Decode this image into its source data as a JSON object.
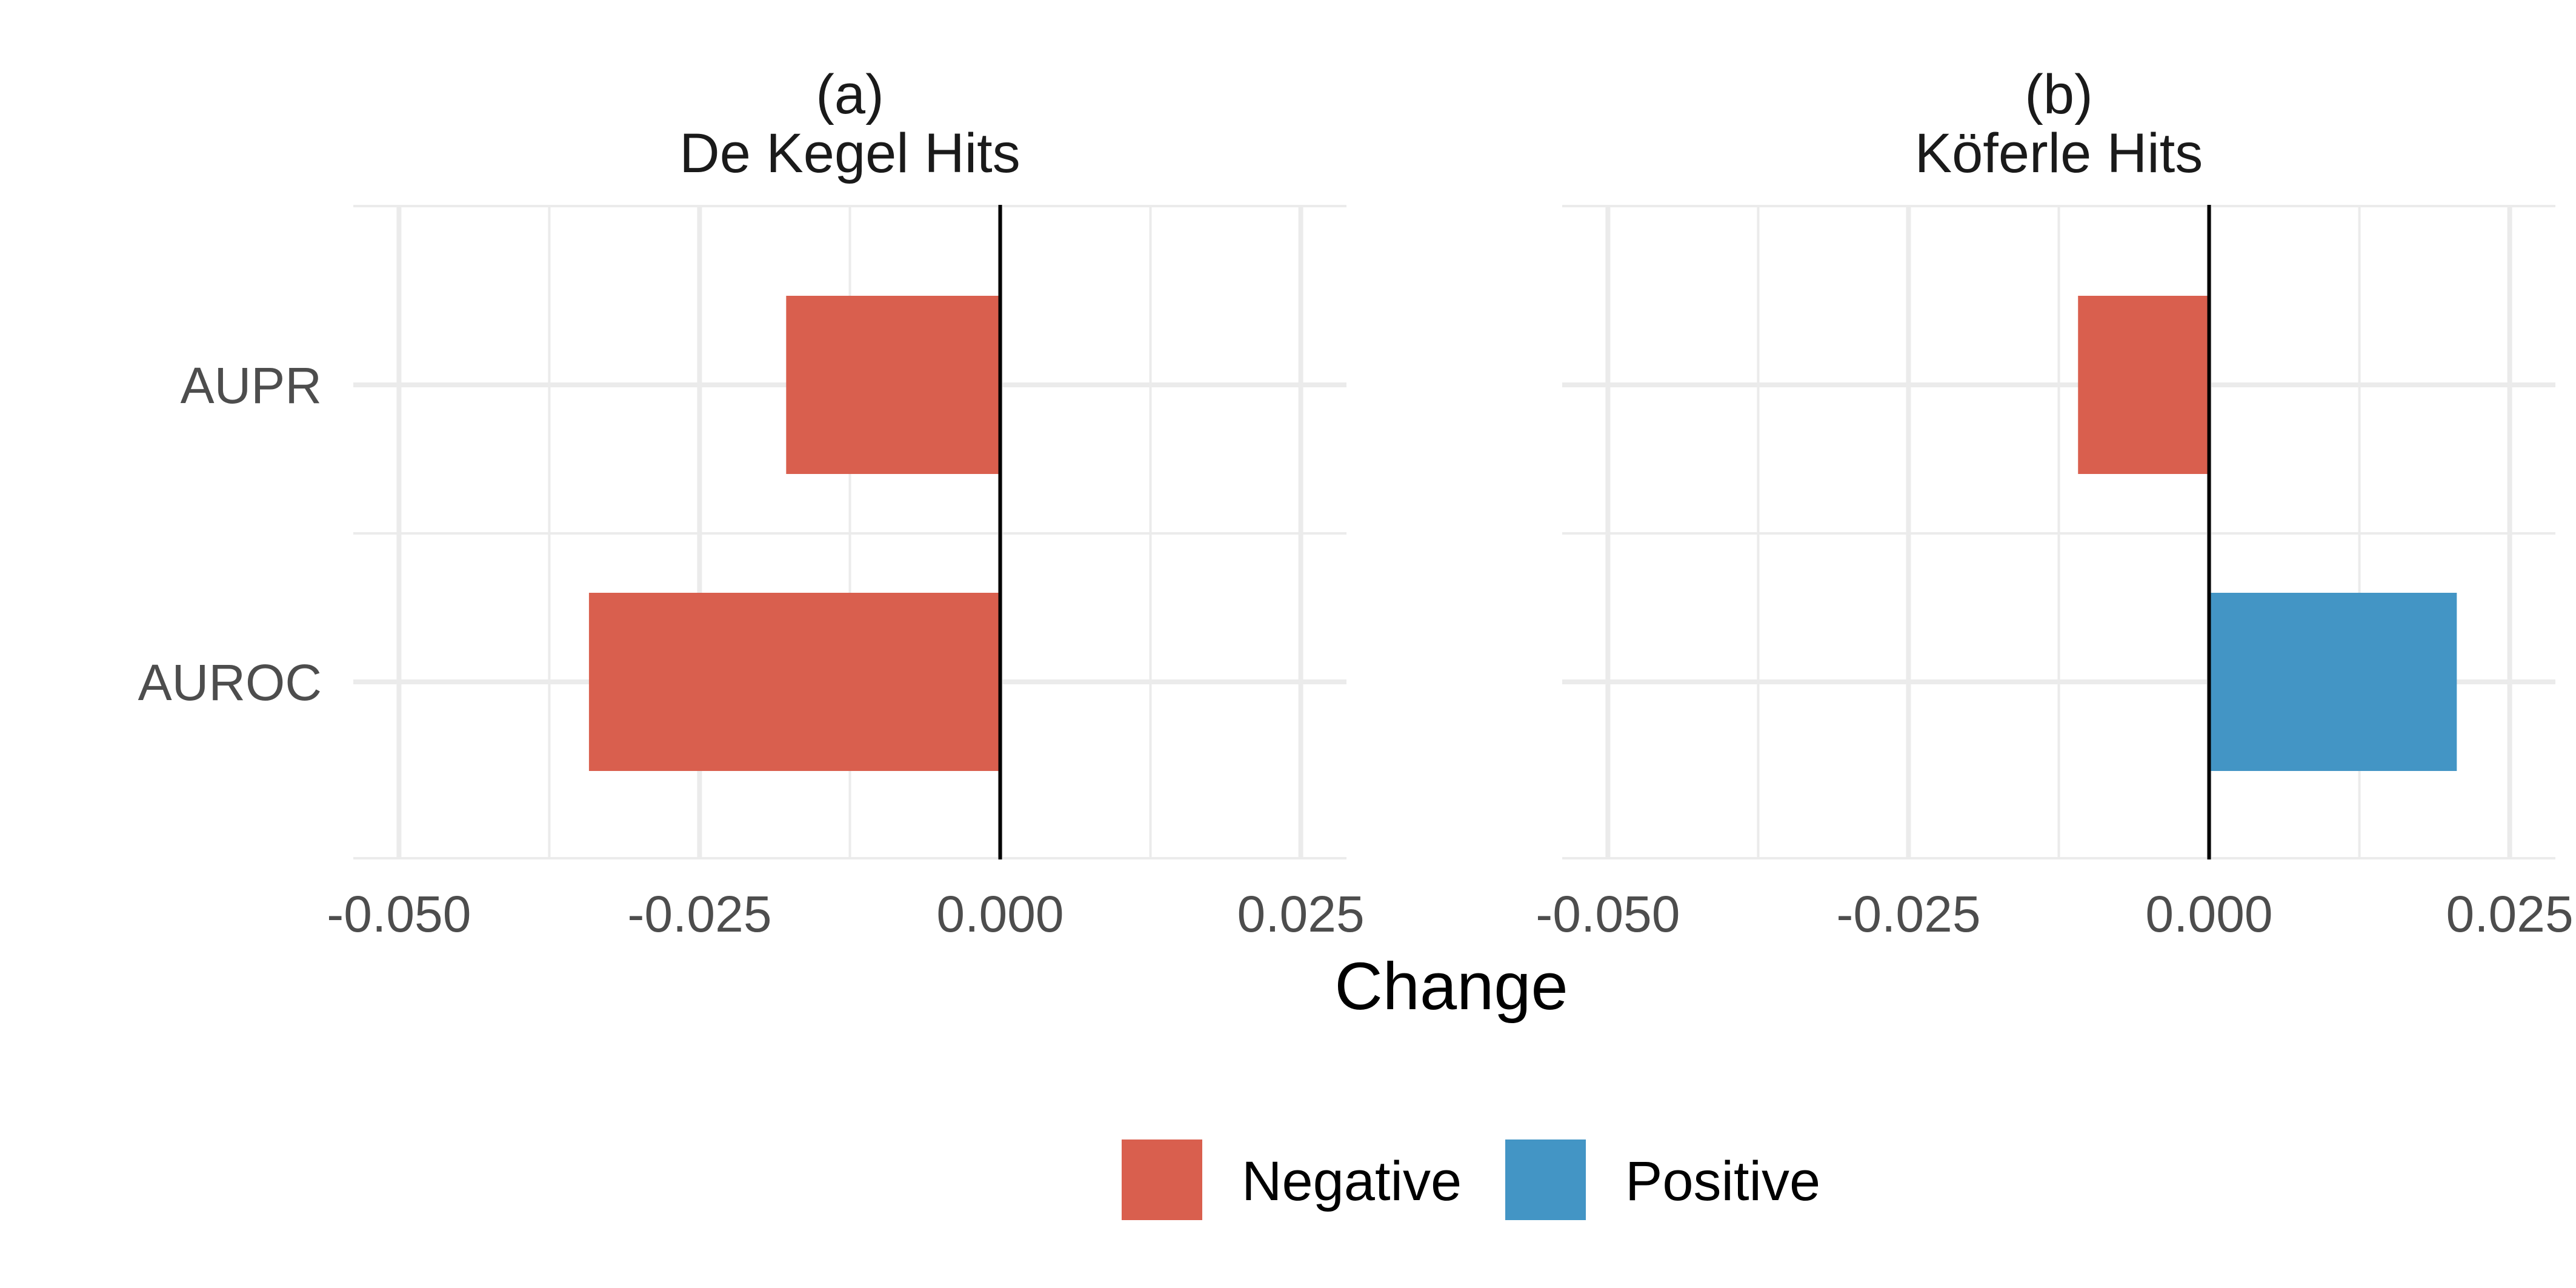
{
  "chart_data": [
    {
      "type": "bar",
      "orientation": "horizontal",
      "title": "(a)\nDe Kegel Hits",
      "title_lines": [
        "(a)",
        "De Kegel Hits"
      ],
      "categories": [
        "AUPR",
        "AUROC"
      ],
      "values": [
        -0.0178,
        -0.0342
      ],
      "sign_labels": [
        "Negative",
        "Negative"
      ],
      "xlim": [
        -0.0538,
        0.0288
      ],
      "xticks": [
        -0.05,
        -0.025,
        0.0,
        0.025
      ],
      "xtick_labels": [
        "-0.050",
        "-0.025",
        "0.000",
        "0.025"
      ],
      "xlabel": "Change",
      "ylabel": "",
      "grid": true,
      "vline_at": 0
    },
    {
      "type": "bar",
      "orientation": "horizontal",
      "title": "(b)\nKöferle Hits",
      "title_lines": [
        "(b)",
        "Köferle Hits"
      ],
      "categories": [
        "AUPR",
        "AUROC"
      ],
      "values": [
        -0.0109,
        0.0206
      ],
      "sign_labels": [
        "Negative",
        "Positive"
      ],
      "xlim": [
        -0.0538,
        0.0288
      ],
      "xticks": [
        -0.05,
        -0.025,
        0.0,
        0.025
      ],
      "xtick_labels": [
        "-0.050",
        "-0.025",
        "0.000",
        "0.025"
      ],
      "xlabel": "Change",
      "ylabel": "",
      "grid": true,
      "vline_at": 0
    }
  ],
  "axis_title": "Change",
  "legend": {
    "placement": "bottom",
    "items": [
      {
        "label": "Negative",
        "color": "#D95F4E"
      },
      {
        "label": "Positive",
        "color": "#4395C5"
      }
    ]
  },
  "colors": {
    "Negative": "#D95F4E",
    "Positive": "#4395C5",
    "grid": "#EBEBEB",
    "zero_line": "#000000"
  }
}
